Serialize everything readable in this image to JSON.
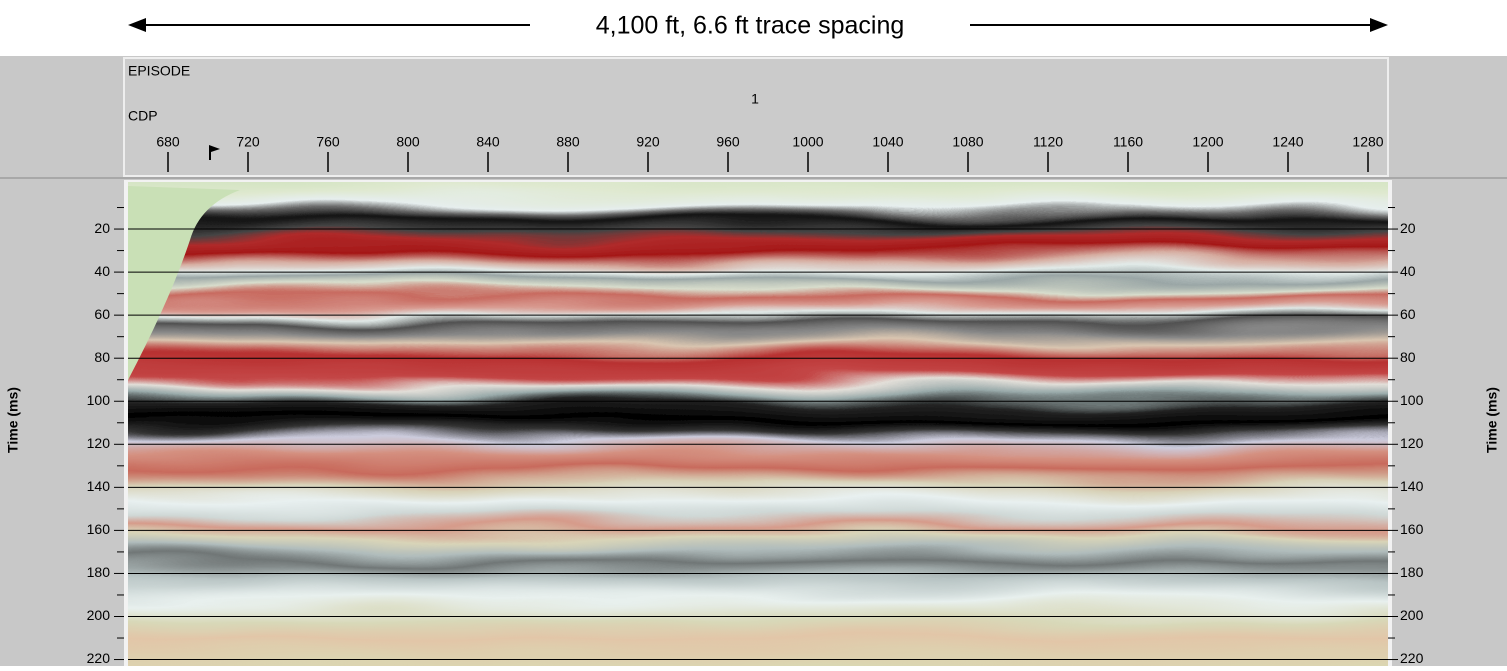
{
  "chart_data": {
    "type": "seismic",
    "title": "4,100 ft, 6.6 ft trace spacing",
    "episode_label": "EPISODE",
    "episode": "1",
    "x_label": "CDP",
    "y_label": "Time (ms)",
    "xlim": [
      658,
      1290
    ],
    "xticks": [
      680,
      720,
      760,
      800,
      840,
      880,
      920,
      960,
      1000,
      1040,
      1080,
      1120,
      1160,
      1200,
      1240,
      1280
    ],
    "ylim": [
      0,
      223
    ],
    "yticks": [
      20,
      40,
      60,
      80,
      100,
      120,
      140,
      160,
      180,
      200,
      220
    ],
    "yminorticks": [
      10,
      30,
      50,
      70,
      90,
      110,
      130,
      150,
      170,
      190,
      210
    ],
    "grid": true
  }
}
